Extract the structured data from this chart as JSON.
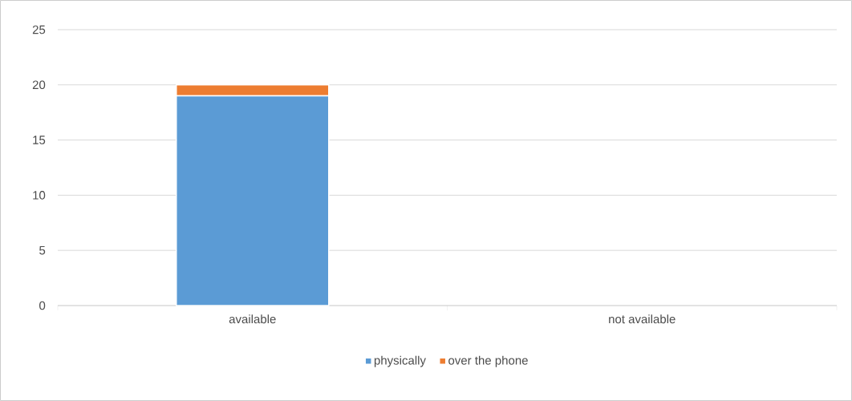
{
  "chart_data": {
    "type": "bar",
    "stacked": true,
    "categories": [
      "available",
      "not available"
    ],
    "series": [
      {
        "name": "physically",
        "color": "#5b9bd5",
        "values": [
          19,
          0
        ]
      },
      {
        "name": "over the phone",
        "color": "#ed7d31",
        "values": [
          1,
          0
        ]
      }
    ],
    "ylim": [
      0,
      25
    ],
    "yticks": [
      0,
      5,
      10,
      15,
      20,
      25
    ],
    "grid": "y",
    "legend": "bottom"
  }
}
